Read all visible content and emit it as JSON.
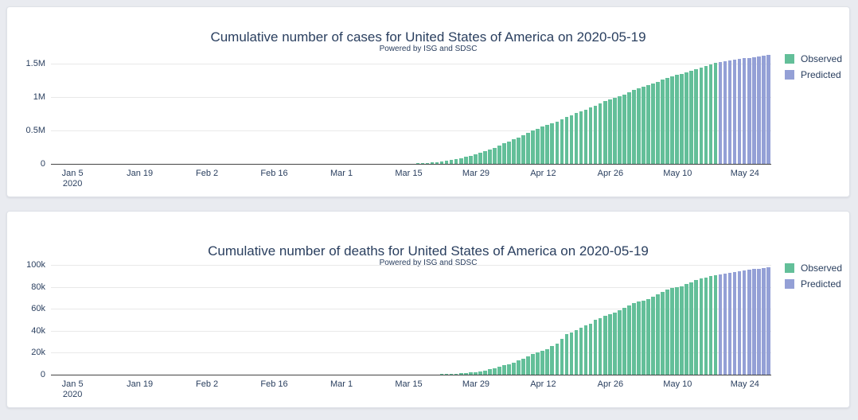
{
  "page": {
    "background_color": "#e9ebf0",
    "card_background_color": "#ffffff"
  },
  "colors": {
    "observed": "#63bf99",
    "predicted": "#94a0d6",
    "title_text": "#2a3f5f",
    "axis_text": "#2a3f5f",
    "gridline": "#e9e9e9",
    "axis_line": "#444444"
  },
  "chart_data": [
    {
      "type": "bar",
      "title": "Cumulative number of cases for United States of America on 2020-05-19",
      "subtitle": "Powered by ISG and SDSC",
      "x_start": "2020-01-01",
      "x_frequency": "daily",
      "x_tick_labels": [
        "Jan 5",
        "Jan 19",
        "Feb 2",
        "Feb 16",
        "Mar 1",
        "Mar 15",
        "Mar 29",
        "Apr 12",
        "Apr 26",
        "May 10",
        "May 24"
      ],
      "x_tick_day_indices": [
        4,
        18,
        32,
        46,
        60,
        74,
        88,
        102,
        116,
        130,
        144
      ],
      "x_first_tick_year": "2020",
      "y_tick_labels": [
        "0",
        "0.5M",
        "1M",
        "1.5M"
      ],
      "y_tick_values": [
        0,
        500000,
        1000000,
        1500000
      ],
      "ylim": [
        0,
        1720000
      ],
      "grid": true,
      "legend_position": "top-right",
      "series": [
        {
          "name": "Observed",
          "color": "#63bf99",
          "values": [
            0,
            0,
            0,
            0,
            0,
            0,
            0,
            0,
            0,
            0,
            0,
            0,
            0,
            0,
            0,
            0,
            0,
            0,
            0,
            0,
            0,
            1,
            1,
            2,
            2,
            5,
            5,
            5,
            5,
            5,
            7,
            8,
            8,
            8,
            8,
            11,
            11,
            11,
            11,
            11,
            11,
            12,
            12,
            13,
            13,
            13,
            15,
            15,
            15,
            15,
            15,
            15,
            35,
            35,
            35,
            53,
            57,
            60,
            60,
            68,
            75,
            100,
            124,
            158,
            221,
            319,
            435,
            541,
            704,
            994,
            1301,
            1630,
            2183,
            2771,
            3617,
            4604,
            6357,
            9197,
            13779,
            19367,
            24192,
            33592,
            43781,
            54856,
            68211,
            85435,
            104126,
            122653,
            140886,
            161807,
            188172,
            213242,
            243622,
            275367,
            308650,
            336830,
            366317,
            396223,
            429052,
            461437,
            496535,
            526396,
            555313,
            580619,
            607670,
            636350,
            667592,
            699706,
            732197,
            758809,
            784326,
            811865,
            840351,
            869170,
            905333,
            938154,
            965785,
            988197,
            1012582,
            1039909,
            1069424,
            1103461,
            1132539,
            1158040,
            1180375,
            1204351,
            1229331,
            1257023,
            1283929,
            1309541,
            1329260,
            1347881,
            1369376,
            1390406,
            1417774,
            1442824,
            1467820,
            1486757,
            1508308
          ]
        },
        {
          "name": "Predicted",
          "color": "#94a0d6",
          "values": [
            1520000,
            1531500,
            1543000,
            1554500,
            1566000,
            1577500,
            1589000,
            1600500,
            1612000,
            1623500,
            1635000
          ]
        }
      ]
    },
    {
      "type": "bar",
      "title": "Cumulative number of deaths for United States of America on 2020-05-19",
      "subtitle": "Powered by ISG and SDSC",
      "x_start": "2020-01-01",
      "x_frequency": "daily",
      "x_tick_labels": [
        "Jan 5",
        "Jan 19",
        "Feb 2",
        "Feb 16",
        "Mar 1",
        "Mar 15",
        "Mar 29",
        "Apr 12",
        "Apr 26",
        "May 10",
        "May 24"
      ],
      "x_tick_day_indices": [
        4,
        18,
        32,
        46,
        60,
        74,
        88,
        102,
        116,
        130,
        144
      ],
      "x_first_tick_year": "2020",
      "y_tick_labels": [
        "0",
        "20k",
        "40k",
        "60k",
        "80k",
        "100k"
      ],
      "y_tick_values": [
        0,
        20000,
        40000,
        60000,
        80000,
        100000
      ],
      "ylim": [
        0,
        103000
      ],
      "grid": true,
      "legend_position": "top-right",
      "series": [
        {
          "name": "Observed",
          "color": "#63bf99",
          "values": [
            0,
            0,
            0,
            0,
            0,
            0,
            0,
            0,
            0,
            0,
            0,
            0,
            0,
            0,
            0,
            0,
            0,
            0,
            0,
            0,
            0,
            0,
            0,
            0,
            0,
            0,
            0,
            0,
            0,
            0,
            0,
            0,
            0,
            0,
            0,
            0,
            0,
            0,
            0,
            0,
            0,
            0,
            0,
            0,
            0,
            0,
            0,
            0,
            0,
            0,
            0,
            0,
            0,
            0,
            0,
            0,
            0,
            0,
            0,
            1,
            1,
            6,
            7,
            11,
            12,
            14,
            17,
            21,
            22,
            28,
            36,
            40,
            47,
            54,
            63,
            85,
            108,
            150,
            207,
            256,
            302,
            414,
            556,
            706,
            942,
            1209,
            1581,
            2026,
            2467,
            2978,
            3874,
            4757,
            5926,
            7087,
            8407,
            9619,
            10783,
            12798,
            14704,
            16553,
            18595,
            20471,
            22032,
            23536,
            25832,
            28332,
            32917,
            36777,
            38671,
            40683,
            42514,
            45086,
            46611,
            49724,
            51655,
            53755,
            54881,
            56259,
            58355,
            60967,
            63019,
            64943,
            66369,
            67674,
            68922,
            71064,
            73431,
            75662,
            77180,
            78795,
            79526,
            80682,
            82356,
            84119,
            85906,
            87530,
            88754,
            89562,
            90347
          ]
        },
        {
          "name": "Predicted",
          "color": "#94a0d6",
          "values": [
            91100,
            91850,
            92600,
            93350,
            94100,
            94800,
            95450,
            96100,
            96700,
            97250,
            97800
          ]
        }
      ]
    }
  ]
}
